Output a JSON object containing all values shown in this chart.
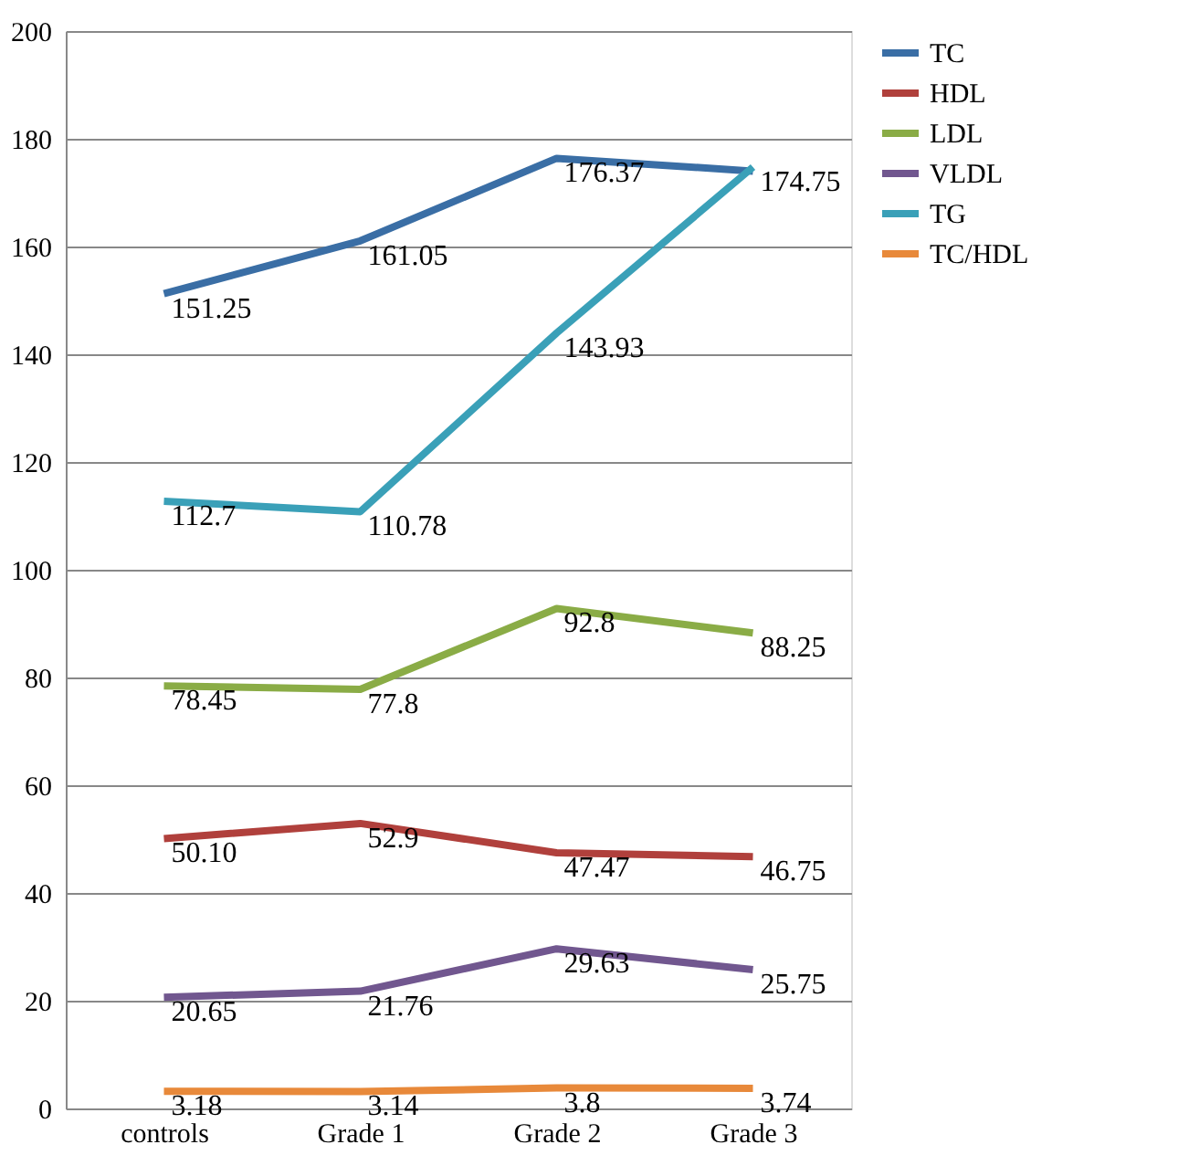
{
  "chart_data": {
    "type": "line",
    "categories": [
      "controls",
      "Grade 1",
      "Grade 2",
      "Grade 3"
    ],
    "series": [
      {
        "name": "TC",
        "color": "#3a6ea5",
        "values": [
          151.25,
          161.05,
          176.37,
          174
        ],
        "value_labels": [
          "151.25",
          "161.05",
          "176.37",
          null
        ]
      },
      {
        "name": "HDL",
        "color": "#b0403c",
        "values": [
          50.1,
          52.9,
          47.47,
          46.75
        ],
        "value_labels": [
          "50.10",
          "52.9",
          "47.47",
          "46.75"
        ]
      },
      {
        "name": "LDL",
        "color": "#8aac46",
        "values": [
          78.45,
          77.8,
          92.8,
          88.25
        ],
        "value_labels": [
          "78.45",
          "77.8",
          "92.8",
          "88.25"
        ]
      },
      {
        "name": "VLDL",
        "color": "#71578f",
        "values": [
          20.65,
          21.76,
          29.63,
          25.75
        ],
        "value_labels": [
          "20.65",
          "21.76",
          "29.63",
          "25.75"
        ]
      },
      {
        "name": "TG",
        "color": "#3aa0b8",
        "values": [
          112.7,
          110.78,
          143.93,
          174.75
        ],
        "value_labels": [
          "112.7",
          "110.78",
          "143.93",
          "174.75"
        ]
      },
      {
        "name": "TC/HDL",
        "color": "#e8893a",
        "values": [
          3.18,
          3.14,
          3.8,
          3.74
        ],
        "value_labels": [
          "3.18",
          "3.14",
          "3.8",
          "3.74"
        ]
      }
    ],
    "ylim": [
      0,
      200
    ],
    "yticks": [
      0,
      20,
      40,
      60,
      80,
      100,
      120,
      140,
      160,
      180,
      200
    ],
    "grid": "y",
    "legend": "right",
    "marker": "none",
    "line_style": "solid"
  }
}
